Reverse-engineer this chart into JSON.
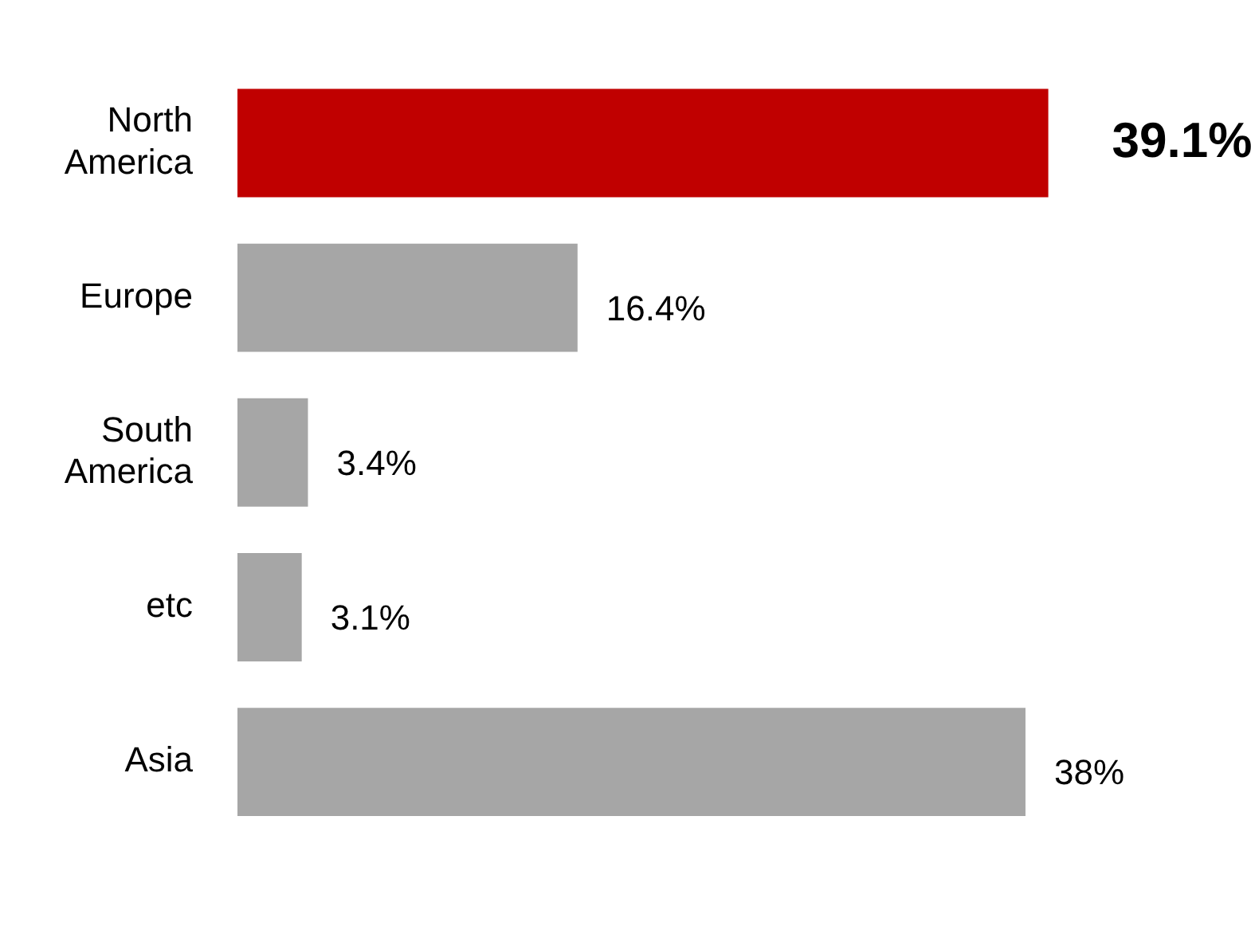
{
  "chart_data": {
    "type": "bar",
    "orientation": "horizontal",
    "tick_labels": "y",
    "categories": [
      "North America",
      "Europe",
      "South America",
      "etc",
      "Asia"
    ],
    "values": [
      39.1,
      16.4,
      3.4,
      3.1,
      38
    ],
    "colors": [
      "#c00000",
      "#a6a6a6",
      "#a6a6a6",
      "#a6a6a6",
      "#a6a6a6"
    ],
    "value_labels": [
      "39.1%",
      "16.4%",
      "3.4%",
      "3.1%",
      "38%"
    ]
  }
}
